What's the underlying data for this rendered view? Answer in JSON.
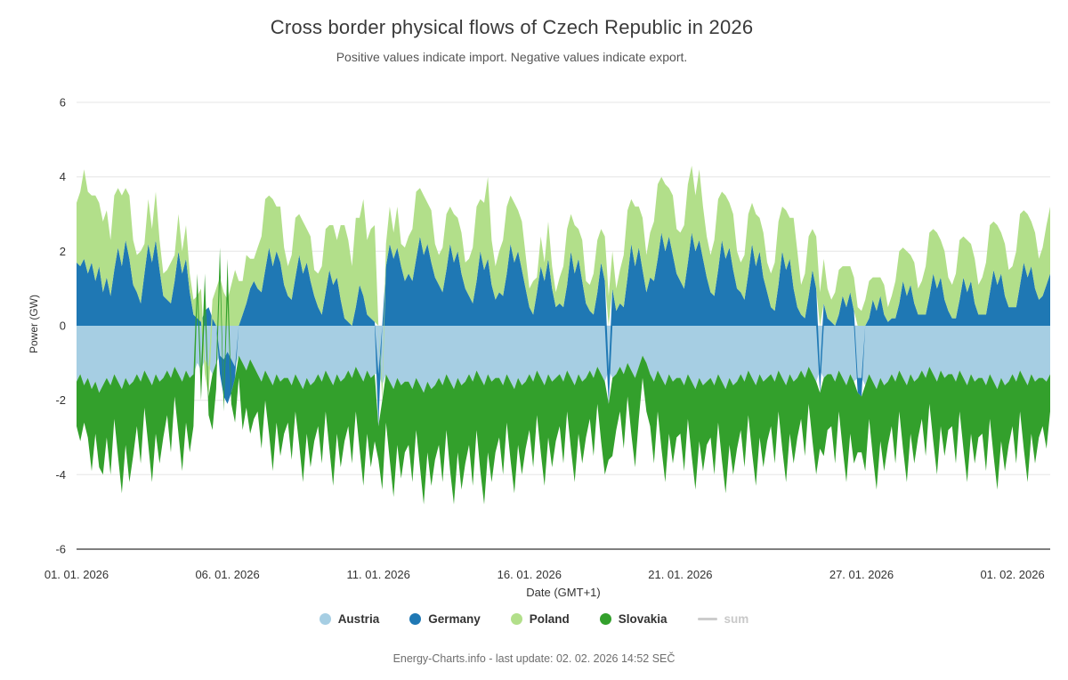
{
  "header": {
    "title": "Cross border physical flows of Czech Republic in 2026",
    "subtitle": "Positive values indicate import. Negative values indicate export."
  },
  "footer": {
    "text": "Energy-Charts.info - last update: 02. 02. 2026 14:52 SEČ"
  },
  "chart_data": {
    "type": "area",
    "stacking": "diverging",
    "title": "Cross border physical flows of Czech Republic in 2026",
    "xlabel": "Date (GMT+1)",
    "ylabel": "Power (GW)",
    "unit": "GW",
    "ylim": [
      -6,
      6
    ],
    "yticks": [
      6,
      4,
      2,
      0,
      -2,
      -4,
      -6
    ],
    "grid": "horizontal-only",
    "legend_position": "bottom",
    "x_domain_days": [
      0,
      32.25
    ],
    "sample_interval_hours": 3,
    "xticks": [
      {
        "t": 0,
        "label": "01. 01. 2026"
      },
      {
        "t": 5,
        "label": "06. 01. 2026"
      },
      {
        "t": 10,
        "label": "11. 01. 2026"
      },
      {
        "t": 15,
        "label": "16. 01. 2026"
      },
      {
        "t": 20,
        "label": "21. 01. 2026"
      },
      {
        "t": 26,
        "label": "27. 01. 2026"
      },
      {
        "t": 31,
        "label": "01. 02. 2026"
      }
    ],
    "series": [
      {
        "name": "Austria",
        "color": "#a6cee3",
        "marker": "circle",
        "disabled": false,
        "values": [
          -1.5,
          -1.3,
          -1.6,
          -1.4,
          -1.7,
          -1.5,
          -1.8,
          -1.6,
          -1.4,
          -1.6,
          -1.3,
          -1.5,
          -1.7,
          -1.4,
          -1.6,
          -1.5,
          -1.3,
          -1.5,
          -1.2,
          -1.4,
          -1.6,
          -1.3,
          -1.5,
          -1.4,
          -1.2,
          -1.4,
          -1.1,
          -1.3,
          -1.5,
          -1.2,
          -1.4,
          -1.3,
          -1.0,
          -1.2,
          -0.9,
          -1.1,
          -1.3,
          -1.0,
          -0.8,
          -0.9,
          -0.7,
          -0.9,
          -1.1,
          -0.8,
          -1.0,
          -1.2,
          -0.9,
          -1.1,
          -1.3,
          -1.5,
          -1.2,
          -1.4,
          -1.6,
          -1.3,
          -1.5,
          -1.4,
          -1.4,
          -1.6,
          -1.3,
          -1.5,
          -1.7,
          -1.4,
          -1.6,
          -1.5,
          -1.3,
          -1.5,
          -1.2,
          -1.4,
          -1.6,
          -1.3,
          -1.5,
          -1.4,
          -1.2,
          -1.4,
          -1.1,
          -1.3,
          -1.5,
          -1.2,
          -1.4,
          -1.3,
          -1.3,
          -1.6,
          -1.3,
          -1.5,
          -1.7,
          -1.4,
          -1.6,
          -1.5,
          -1.5,
          -1.7,
          -1.4,
          -1.6,
          -1.8,
          -1.5,
          -1.7,
          -1.6,
          -1.4,
          -1.6,
          -1.3,
          -1.5,
          -1.7,
          -1.4,
          -1.6,
          -1.5,
          -1.3,
          -1.5,
          -1.2,
          -1.4,
          -1.6,
          -1.3,
          -1.5,
          -1.4,
          -1.4,
          -1.6,
          -1.3,
          -1.5,
          -1.7,
          -1.4,
          -1.6,
          -1.5,
          -1.3,
          -1.5,
          -1.2,
          -1.4,
          -1.6,
          -1.3,
          -1.5,
          -1.4,
          -1.3,
          -1.5,
          -1.2,
          -1.4,
          -1.6,
          -1.3,
          -1.5,
          -1.4,
          -1.2,
          -1.4,
          -1.1,
          -1.3,
          -1.5,
          -1.2,
          -1.4,
          -1.3,
          -1.1,
          -1.3,
          -1.0,
          -1.2,
          -1.4,
          -1.1,
          -0.8,
          -1.0,
          -1.3,
          -1.5,
          -1.2,
          -1.4,
          -1.6,
          -1.3,
          -1.5,
          -1.4,
          -1.4,
          -1.6,
          -1.3,
          -1.5,
          -1.7,
          -1.4,
          -1.6,
          -1.5,
          -1.4,
          -1.6,
          -1.3,
          -1.5,
          -1.7,
          -1.4,
          -1.6,
          -1.5,
          -1.3,
          -1.5,
          -1.2,
          -1.4,
          -1.6,
          -1.3,
          -1.5,
          -1.4,
          -1.3,
          -1.5,
          -1.2,
          -1.4,
          -1.6,
          -1.3,
          -1.5,
          -1.4,
          -1.2,
          -1.4,
          -1.1,
          -1.3,
          -1.5,
          -1.2,
          -1.4,
          -1.3,
          -1.3,
          -1.5,
          -1.2,
          -1.4,
          -1.6,
          -1.3,
          -1.5,
          -1.4,
          -1.4,
          -1.6,
          -1.3,
          -1.5,
          -1.7,
          -1.4,
          -1.6,
          -1.5,
          -1.3,
          -1.5,
          -1.2,
          -1.4,
          -1.6,
          -1.3,
          -1.5,
          -1.4,
          -1.2,
          -1.4,
          -1.1,
          -1.3,
          -1.5,
          -1.2,
          -1.4,
          -1.3,
          -1.3,
          -1.5,
          -1.2,
          -1.4,
          -1.6,
          -1.3,
          -1.5,
          -1.4,
          -1.4,
          -1.6,
          -1.3,
          -1.5,
          -1.7,
          -1.4,
          -1.6,
          -1.5,
          -1.3,
          -1.5,
          -1.2,
          -1.4,
          -1.6,
          -1.3,
          -1.5,
          -1.4,
          -1.4,
          -1.5,
          -1.3
        ]
      },
      {
        "name": "Germany",
        "color": "#1f78b4",
        "marker": "circle",
        "disabled": false,
        "values": [
          1.7,
          1.6,
          1.8,
          1.4,
          1.7,
          1.2,
          1.6,
          0.9,
          1.3,
          0.8,
          1.5,
          2.1,
          1.6,
          2.3,
          1.8,
          1.1,
          0.9,
          0.6,
          1.4,
          2.2,
          1.7,
          2.3,
          1.5,
          0.8,
          0.7,
          0.6,
          1.2,
          2.0,
          1.4,
          1.8,
          0.9,
          0.3,
          0.2,
          0.1,
          0.4,
          0.5,
          0.2,
          0.0,
          -0.5,
          -1.0,
          -1.4,
          -0.9,
          -0.3,
          0.0,
          0.3,
          0.6,
          1.0,
          1.2,
          1.0,
          0.9,
          1.5,
          2.1,
          1.6,
          2.0,
          1.7,
          1.1,
          0.8,
          0.7,
          1.3,
          1.9,
          1.4,
          1.7,
          1.2,
          0.8,
          0.5,
          0.3,
          0.9,
          1.5,
          1.1,
          1.3,
          0.7,
          0.2,
          0.1,
          0.0,
          0.5,
          1.1,
          0.8,
          0.3,
          0.2,
          0.1,
          -1.4,
          0.0,
          1.6,
          2.2,
          1.8,
          2.1,
          1.6,
          1.2,
          1.4,
          1.2,
          1.8,
          2.4,
          1.9,
          2.2,
          1.7,
          1.3,
          1.1,
          0.9,
          1.5,
          2.2,
          1.7,
          2.0,
          1.4,
          1.0,
          0.8,
          0.6,
          1.2,
          2.0,
          1.5,
          1.8,
          1.1,
          0.7,
          0.9,
          0.8,
          1.4,
          2.2,
          1.7,
          2.0,
          1.5,
          1.0,
          0.5,
          0.3,
          0.9,
          1.6,
          1.2,
          1.8,
          1.0,
          0.5,
          0.6,
          0.5,
          1.1,
          2.0,
          1.4,
          1.8,
          1.2,
          0.6,
          0.4,
          0.3,
          0.9,
          1.7,
          1.2,
          -0.9,
          1.0,
          0.4,
          0.6,
          0.5,
          1.3,
          2.2,
          1.6,
          2.1,
          1.5,
          0.9,
          1.3,
          1.2,
          1.8,
          2.5,
          2.0,
          2.4,
          1.9,
          1.4,
          1.2,
          1.0,
          1.7,
          2.5,
          2.0,
          2.3,
          1.8,
          1.3,
          0.9,
          0.8,
          1.5,
          2.3,
          1.8,
          2.1,
          1.5,
          1.0,
          0.9,
          0.7,
          1.4,
          2.2,
          1.6,
          2.0,
          1.3,
          0.9,
          0.5,
          0.4,
          1.1,
          2.0,
          1.5,
          1.8,
          1.0,
          0.5,
          0.3,
          0.2,
          0.8,
          1.5,
          1.0,
          -0.6,
          0.6,
          0.2,
          0.1,
          0.0,
          0.3,
          0.8,
          0.5,
          0.9,
          0.4,
          -0.4,
          -0.5,
          0.0,
          0.2,
          0.7,
          0.4,
          0.8,
          0.3,
          0.1,
          0.2,
          0.2,
          0.6,
          1.2,
          0.8,
          1.1,
          0.6,
          0.3,
          0.3,
          0.3,
          0.8,
          1.4,
          1.0,
          1.3,
          0.7,
          0.4,
          0.2,
          0.2,
          0.7,
          1.3,
          0.9,
          1.2,
          0.6,
          0.3,
          0.3,
          0.3,
          0.9,
          1.5,
          1.1,
          1.4,
          0.8,
          0.5,
          0.5,
          0.5,
          1.1,
          1.7,
          1.3,
          1.6,
          1.0,
          0.7,
          0.8,
          1.1,
          1.4
        ]
      },
      {
        "name": "Poland",
        "color": "#b2df8a",
        "marker": "circle",
        "disabled": false,
        "values": [
          1.6,
          2.0,
          2.4,
          2.2,
          1.8,
          2.3,
          1.7,
          1.9,
          1.8,
          1.5,
          2.0,
          1.6,
          1.9,
          1.4,
          1.7,
          1.2,
          1.0,
          1.4,
          0.8,
          1.2,
          0.9,
          1.3,
          0.8,
          0.6,
          0.8,
          1.1,
          0.7,
          1.0,
          0.6,
          0.9,
          0.5,
          0.4,
          0.6,
          0.9,
          -0.4,
          -0.8,
          0.5,
          1.0,
          1.3,
          0.9,
          0.7,
          1.1,
          1.5,
          1.2,
          0.9,
          1.3,
          0.8,
          0.6,
          1.1,
          1.5,
          1.9,
          1.4,
          1.8,
          1.2,
          1.5,
          1.0,
          0.8,
          1.2,
          1.6,
          1.1,
          1.4,
          0.9,
          1.2,
          0.7,
          0.9,
          1.3,
          1.7,
          1.2,
          1.6,
          1.0,
          2.0,
          2.5,
          2.2,
          1.6,
          2.4,
          1.8,
          2.6,
          2.0,
          2.4,
          2.6,
          0.0,
          -0.4,
          0.6,
          1.0,
          0.7,
          1.1,
          0.6,
          0.9,
          1.0,
          1.4,
          1.8,
          1.3,
          1.6,
          1.1,
          1.4,
          0.9,
          0.8,
          1.2,
          1.5,
          1.0,
          1.3,
          0.9,
          1.1,
          0.7,
          1.0,
          1.5,
          2.0,
          1.4,
          1.8,
          2.2,
          1.2,
          0.9,
          1.1,
          1.5,
          1.8,
          1.3,
          1.6,
          1.1,
          1.3,
          0.9,
          0.5,
          0.9,
          0.4,
          0.8,
          0.5,
          1.0,
          0.6,
          0.4,
          0.7,
          1.1,
          1.5,
          1.0,
          1.3,
          0.8,
          1.1,
          0.6,
          0.7,
          1.1,
          1.4,
          0.9,
          1.2,
          0.8,
          1.0,
          0.6,
          0.9,
          1.4,
          1.8,
          1.2,
          1.6,
          1.1,
          1.4,
          1.0,
          1.2,
          1.6,
          2.0,
          1.5,
          1.8,
          1.3,
          1.6,
          1.2,
          1.3,
          1.7,
          2.1,
          1.8,
          1.5,
          1.9,
          1.4,
          1.1,
          1.0,
          1.5,
          1.9,
          1.3,
          1.7,
          1.2,
          1.5,
          1.0,
          0.8,
          1.2,
          1.6,
          1.1,
          1.4,
          0.9,
          1.2,
          0.8,
          0.9,
          1.3,
          1.7,
          1.2,
          1.6,
          1.1,
          1.9,
          1.5,
          0.8,
          1.2,
          1.6,
          1.1,
          1.4,
          0.9,
          1.2,
          0.8,
          0.6,
          0.9,
          1.2,
          0.8,
          1.1,
          0.7,
          0.9,
          0.5,
          0.4,
          0.7,
          1.0,
          0.6,
          0.9,
          0.5,
          0.8,
          0.4,
          0.6,
          1.0,
          1.4,
          0.9,
          1.2,
          0.8,
          1.1,
          0.7,
          0.9,
          1.3,
          1.7,
          1.2,
          1.5,
          1.0,
          1.3,
          0.9,
          0.9,
          1.2,
          1.6,
          1.1,
          1.4,
          1.0,
          1.2,
          0.8,
          1.0,
          1.4,
          1.8,
          1.3,
          1.6,
          1.1,
          1.4,
          1.0,
          1.1,
          1.5,
          1.9,
          1.4,
          1.7,
          1.2,
          1.5,
          1.1,
          1.3,
          1.6,
          1.8
        ]
      },
      {
        "name": "Slovakia",
        "color": "#33a02c",
        "marker": "circle",
        "disabled": false,
        "values": [
          -1.2,
          -1.8,
          -1.0,
          -1.6,
          -2.2,
          -1.4,
          -2.0,
          -2.4,
          -1.6,
          -2.4,
          -1.2,
          -2.0,
          -2.8,
          -1.8,
          -2.6,
          -2.0,
          -1.4,
          -2.2,
          -1.0,
          -1.8,
          -2.6,
          -1.6,
          -2.2,
          -1.6,
          -1.2,
          -2.0,
          -0.8,
          -1.6,
          -2.4,
          -1.4,
          -2.0,
          -1.4,
          0.6,
          -0.8,
          1.0,
          -0.5,
          -1.5,
          -0.7,
          0.8,
          -0.4,
          1.1,
          -0.3,
          -1.2,
          -0.6,
          -1.8,
          -1.0,
          -2.0,
          -1.4,
          -1.0,
          -1.8,
          -0.8,
          -1.5,
          -2.3,
          -1.3,
          -2.0,
          -1.5,
          -1.2,
          -2.0,
          -1.0,
          -1.7,
          -2.5,
          -1.5,
          -2.2,
          -1.6,
          -1.4,
          -2.2,
          -1.1,
          -1.9,
          -2.7,
          -1.6,
          -2.3,
          -1.7,
          -1.5,
          -2.3,
          -1.2,
          -2.0,
          -2.8,
          -1.7,
          -2.4,
          -1.8,
          -0.9,
          -2.4,
          -1.3,
          -2.1,
          -2.9,
          -1.8,
          -2.5,
          -1.9,
          -1.7,
          -2.5,
          -1.4,
          -2.2,
          -3.0,
          -1.9,
          -2.6,
          -2.0,
          -1.8,
          -2.6,
          -1.5,
          -2.4,
          -3.1,
          -2.0,
          -2.8,
          -2.2,
          -1.9,
          -2.8,
          -1.6,
          -2.5,
          -3.2,
          -2.1,
          -2.7,
          -2.0,
          -1.6,
          -2.4,
          -1.3,
          -2.1,
          -2.8,
          -1.8,
          -2.4,
          -1.8,
          -1.5,
          -2.3,
          -1.2,
          -2.0,
          -2.7,
          -1.7,
          -2.3,
          -1.7,
          -1.4,
          -2.2,
          -1.1,
          -1.9,
          -2.6,
          -1.6,
          -2.2,
          -1.6,
          -1.3,
          -2.1,
          -1.0,
          -1.8,
          -2.5,
          -1.5,
          -2.1,
          -1.5,
          -1.2,
          -2.0,
          -0.9,
          -1.7,
          -2.4,
          -1.4,
          -0.6,
          -1.3,
          -1.4,
          -2.2,
          -1.1,
          -1.9,
          -2.6,
          -1.6,
          -2.2,
          -1.6,
          -1.5,
          -2.3,
          -1.2,
          -2.0,
          -2.7,
          -1.7,
          -2.3,
          -1.7,
          -1.6,
          -2.4,
          -1.3,
          -2.1,
          -2.8,
          -1.8,
          -2.4,
          -1.8,
          -1.5,
          -2.3,
          -1.2,
          -2.0,
          -2.7,
          -1.7,
          -2.3,
          -1.7,
          -1.4,
          -2.2,
          -1.1,
          -1.9,
          -2.6,
          -1.6,
          -2.2,
          -1.6,
          -1.3,
          -2.1,
          -1.0,
          -1.8,
          -2.5,
          -1.5,
          -2.1,
          -1.5,
          -1.4,
          -2.2,
          -1.1,
          -1.9,
          -2.6,
          -1.6,
          -2.2,
          -1.6,
          -1.5,
          -2.3,
          -1.2,
          -2.0,
          -2.7,
          -1.7,
          -2.3,
          -1.7,
          -1.4,
          -2.2,
          -1.1,
          -1.9,
          -2.6,
          -1.6,
          -2.2,
          -1.6,
          -1.3,
          -2.1,
          -1.0,
          -1.8,
          -2.5,
          -1.5,
          -2.1,
          -1.5,
          -1.4,
          -2.2,
          -1.1,
          -1.9,
          -2.6,
          -1.6,
          -2.2,
          -1.6,
          -1.5,
          -2.3,
          -1.2,
          -2.0,
          -2.7,
          -1.7,
          -2.3,
          -1.7,
          -1.4,
          -2.2,
          -1.1,
          -1.9,
          -2.6,
          -1.6,
          -2.2,
          -1.6,
          -1.3,
          -1.8,
          -1.0
        ]
      },
      {
        "name": "sum",
        "color": "#cccccc",
        "marker": "line",
        "disabled": true,
        "values": []
      }
    ]
  },
  "colors": {
    "grid": "#e6e6e6",
    "axis_line": "#555555",
    "text_primary": "#3a3a3a",
    "text_secondary": "#555555",
    "footer_text": "#6e6e6e",
    "legend_disabled": "#c9c9c9"
  }
}
